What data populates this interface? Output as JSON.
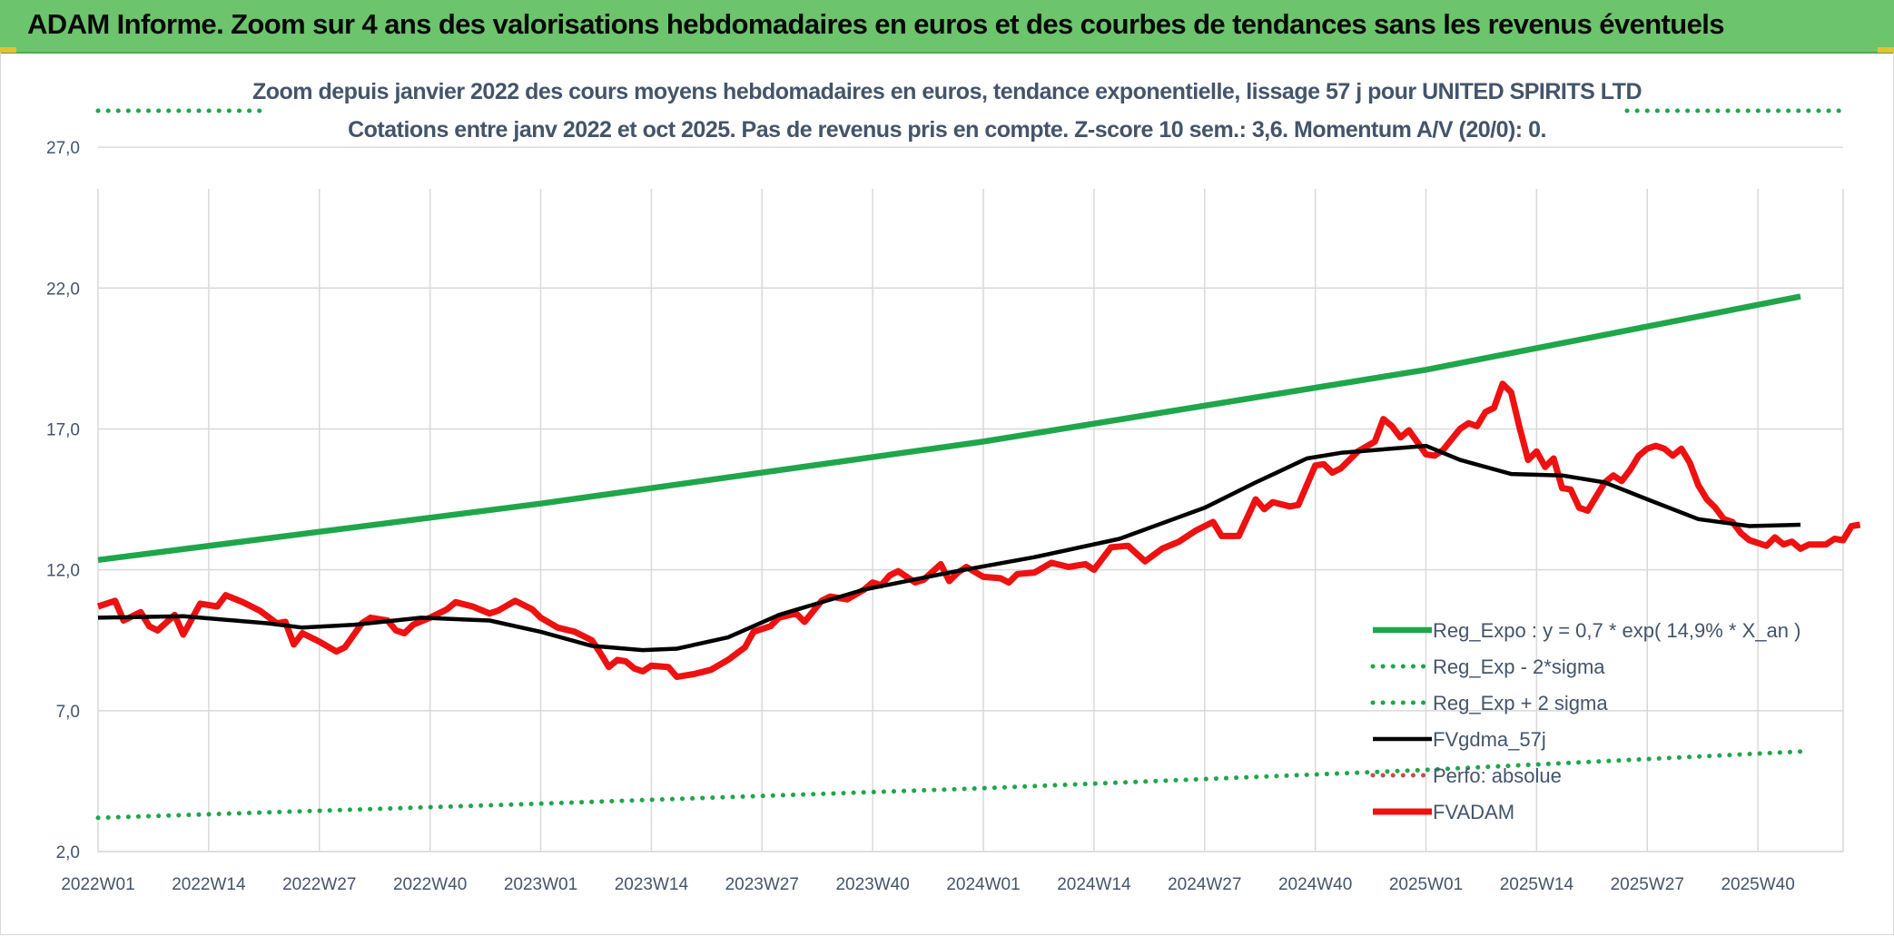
{
  "banner": {
    "title": "ADAM Informe. Zoom sur 4 ans des valorisations hebdomadaires en euros et des courbes de tendances sans les revenus éventuels"
  },
  "colors": {
    "banner_bg": "#6cc46c",
    "reg_expo": "#1fa64a",
    "reg_band": "#1fa64a",
    "fvgdma": "#000000",
    "perfo": "#c0504d",
    "fvadam": "#ee1111",
    "text": "#44546a"
  },
  "chart_data": {
    "type": "line",
    "title_line1": "Zoom depuis janvier 2022 des cours moyens hebdomadaires en euros, tendance exponentielle, lissage 57 j pour UNITED SPIRITS LTD",
    "title_line2": "Cotations entre janv 2022 et oct 2025. Pas de revenus pris en compte. Z-score 10 sem.: 3,6. Momentum A/V (20/0): 0.",
    "ylim": [
      2,
      29
    ],
    "yticks": [
      "2,0",
      "7,0",
      "12,0",
      "17,0",
      "22,0",
      "27,0"
    ],
    "ytick_values": [
      2,
      7,
      12,
      17,
      22,
      27
    ],
    "xticks": [
      "2022W01",
      "2022W14",
      "2022W27",
      "2022W40",
      "2023W01",
      "2023W14",
      "2023W27",
      "2023W40",
      "2024W01",
      "2024W14",
      "2024W27",
      "2024W40",
      "2025W01",
      "2025W14",
      "2025W27",
      "2025W40"
    ],
    "xtick_weeks": [
      0,
      13,
      26,
      39,
      52,
      65,
      78,
      91,
      104,
      117,
      130,
      143,
      156,
      169,
      182,
      195
    ],
    "x_max_week": 200,
    "grid": true,
    "legend_position": "bottom-right",
    "series": [
      {
        "name": "Reg_Expo : y = 0,7 * exp( 14,9% *  X_an )",
        "style": "solid-thick",
        "color_key": "reg_expo",
        "anchors": [
          [
            0,
            12.35
          ],
          [
            52,
            14.35
          ],
          [
            104,
            16.55
          ],
          [
            156,
            19.1
          ],
          [
            200,
            21.7
          ]
        ]
      },
      {
        "name": "Reg_Exp - 2*sigma",
        "style": "dotted",
        "color_key": "reg_band",
        "anchors": [
          [
            0,
            3.2
          ],
          [
            52,
            3.7
          ],
          [
            104,
            4.25
          ],
          [
            156,
            4.9
          ],
          [
            200,
            5.55
          ]
        ]
      },
      {
        "name": "Reg_Exp + 2 sigma",
        "style": "dotted",
        "color_key": "reg_band",
        "anchors": [
          [
            0,
            29.0
          ],
          [
            200,
            29.0
          ]
        ]
      },
      {
        "name": "FVgdma_57j",
        "style": "solid",
        "color_key": "fvgdma",
        "anchors": [
          [
            0,
            10.3
          ],
          [
            10,
            10.35
          ],
          [
            20,
            10.1
          ],
          [
            24,
            9.95
          ],
          [
            30,
            10.05
          ],
          [
            38,
            10.3
          ],
          [
            46,
            10.2
          ],
          [
            52,
            9.8
          ],
          [
            58,
            9.3
          ],
          [
            64,
            9.15
          ],
          [
            68,
            9.2
          ],
          [
            74,
            9.6
          ],
          [
            80,
            10.4
          ],
          [
            90,
            11.3
          ],
          [
            100,
            11.9
          ],
          [
            110,
            12.45
          ],
          [
            120,
            13.1
          ],
          [
            130,
            14.2
          ],
          [
            136,
            15.1
          ],
          [
            142,
            15.95
          ],
          [
            146,
            16.15
          ],
          [
            150,
            16.25
          ],
          [
            156,
            16.4
          ],
          [
            160,
            15.9
          ],
          [
            166,
            15.4
          ],
          [
            172,
            15.35
          ],
          [
            177,
            15.1
          ],
          [
            182,
            14.5
          ],
          [
            188,
            13.8
          ],
          [
            194,
            13.55
          ],
          [
            200,
            13.6
          ]
        ]
      },
      {
        "name": "Perfo: absolue",
        "style": "dotted",
        "color_key": "perfo",
        "anchors": []
      },
      {
        "name": "FVADAM",
        "style": "solid-thick",
        "color_key": "fvadam",
        "anchors": [
          [
            0,
            10.7
          ],
          [
            2,
            10.9
          ],
          [
            3,
            10.2
          ],
          [
            5,
            10.5
          ],
          [
            6,
            10.0
          ],
          [
            7,
            9.85
          ],
          [
            9,
            10.4
          ],
          [
            10,
            9.7
          ],
          [
            12,
            10.8
          ],
          [
            14,
            10.7
          ],
          [
            15,
            11.1
          ],
          [
            17,
            10.85
          ],
          [
            19,
            10.55
          ],
          [
            21,
            10.1
          ],
          [
            22,
            10.15
          ],
          [
            23,
            9.35
          ],
          [
            24,
            9.75
          ],
          [
            26,
            9.45
          ],
          [
            28,
            9.1
          ],
          [
            29,
            9.25
          ],
          [
            31,
            10.1
          ],
          [
            32,
            10.3
          ],
          [
            34,
            10.2
          ],
          [
            35,
            9.85
          ],
          [
            36,
            9.75
          ],
          [
            37,
            10.05
          ],
          [
            39,
            10.3
          ],
          [
            41,
            10.6
          ],
          [
            42,
            10.85
          ],
          [
            44,
            10.7
          ],
          [
            46,
            10.45
          ],
          [
            47,
            10.55
          ],
          [
            49,
            10.9
          ],
          [
            51,
            10.6
          ],
          [
            52,
            10.3
          ],
          [
            54,
            9.95
          ],
          [
            56,
            9.8
          ],
          [
            58,
            9.5
          ],
          [
            59,
            9.05
          ],
          [
            60,
            8.55
          ],
          [
            61,
            8.8
          ],
          [
            62,
            8.75
          ],
          [
            63,
            8.5
          ],
          [
            64,
            8.4
          ],
          [
            65,
            8.6
          ],
          [
            67,
            8.55
          ],
          [
            68,
            8.2
          ],
          [
            70,
            8.3
          ],
          [
            72,
            8.45
          ],
          [
            74,
            8.8
          ],
          [
            76,
            9.25
          ],
          [
            77,
            9.8
          ],
          [
            79,
            10.0
          ],
          [
            80,
            10.3
          ],
          [
            82,
            10.45
          ],
          [
            83,
            10.15
          ],
          [
            85,
            10.9
          ],
          [
            86,
            11.05
          ],
          [
            88,
            10.95
          ],
          [
            90,
            11.3
          ],
          [
            91,
            11.55
          ],
          [
            92,
            11.45
          ],
          [
            93,
            11.8
          ],
          [
            94,
            11.95
          ],
          [
            96,
            11.55
          ],
          [
            97,
            11.65
          ],
          [
            99,
            12.2
          ],
          [
            100,
            11.6
          ],
          [
            101,
            11.9
          ],
          [
            102,
            12.1
          ],
          [
            104,
            11.75
          ],
          [
            106,
            11.7
          ],
          [
            107,
            11.55
          ],
          [
            108,
            11.85
          ],
          [
            110,
            11.9
          ],
          [
            112,
            12.25
          ],
          [
            114,
            12.1
          ],
          [
            116,
            12.2
          ],
          [
            117,
            12.0
          ],
          [
            119,
            12.8
          ],
          [
            121,
            12.85
          ],
          [
            123,
            12.3
          ],
          [
            125,
            12.75
          ],
          [
            127,
            13.0
          ],
          [
            129,
            13.4
          ],
          [
            131,
            13.7
          ],
          [
            132,
            13.2
          ],
          [
            134,
            13.2
          ],
          [
            136,
            14.5
          ],
          [
            137,
            14.15
          ],
          [
            138,
            14.4
          ],
          [
            140,
            14.25
          ],
          [
            141,
            14.3
          ],
          [
            143,
            15.7
          ],
          [
            144,
            15.75
          ],
          [
            145,
            15.45
          ],
          [
            146,
            15.6
          ],
          [
            148,
            16.2
          ],
          [
            150,
            16.55
          ],
          [
            151,
            17.35
          ],
          [
            152,
            17.1
          ],
          [
            153,
            16.7
          ],
          [
            154,
            16.95
          ],
          [
            156,
            16.1
          ],
          [
            157,
            16.05
          ],
          [
            158,
            16.25
          ],
          [
            160,
            17.0
          ],
          [
            161,
            17.2
          ],
          [
            162,
            17.1
          ],
          [
            163,
            17.6
          ],
          [
            164,
            17.75
          ],
          [
            165,
            18.6
          ],
          [
            166,
            18.3
          ],
          [
            167,
            17.05
          ],
          [
            168,
            15.9
          ],
          [
            169,
            16.2
          ],
          [
            170,
            15.65
          ],
          [
            171,
            15.95
          ],
          [
            172,
            14.9
          ],
          [
            173,
            14.85
          ],
          [
            174,
            14.2
          ],
          [
            175,
            14.1
          ],
          [
            176,
            14.6
          ],
          [
            177,
            15.1
          ],
          [
            178,
            15.35
          ],
          [
            179,
            15.15
          ],
          [
            180,
            15.55
          ],
          [
            181,
            16.05
          ],
          [
            182,
            16.3
          ],
          [
            183,
            16.4
          ],
          [
            184,
            16.3
          ],
          [
            185,
            16.05
          ],
          [
            186,
            16.3
          ],
          [
            187,
            15.8
          ],
          [
            188,
            15.0
          ],
          [
            189,
            14.5
          ],
          [
            190,
            14.2
          ],
          [
            191,
            13.8
          ],
          [
            192,
            13.7
          ],
          [
            193,
            13.3
          ],
          [
            194,
            13.05
          ],
          [
            196,
            12.85
          ],
          [
            197,
            13.15
          ],
          [
            198,
            12.9
          ],
          [
            199,
            13.0
          ],
          [
            200,
            12.75
          ],
          [
            201,
            12.9
          ],
          [
            203,
            12.9
          ],
          [
            204,
            13.1
          ],
          [
            205,
            13.05
          ],
          [
            206,
            13.55
          ],
          [
            207,
            13.6
          ]
        ]
      }
    ]
  }
}
